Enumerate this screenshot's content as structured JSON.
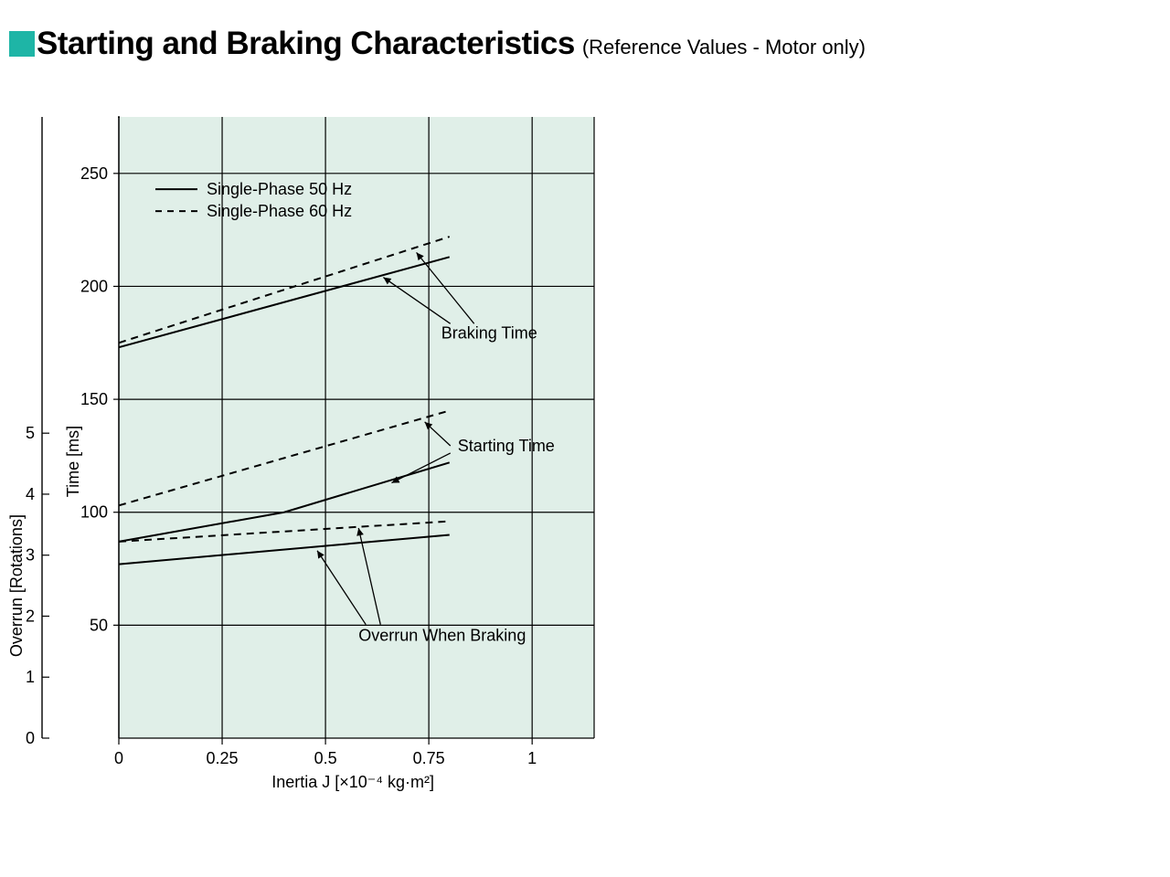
{
  "title": {
    "main": "Starting and Braking Characteristics",
    "sub": "(Reference Values - Motor only)",
    "marker_color": "#1eb5a6"
  },
  "chart": {
    "background_color": "#e0efe8",
    "grid_color": "#000000",
    "axis_color": "#000000",
    "text_color": "#000000",
    "font_family": "Arial",
    "axis_label_fontsize": 18,
    "tick_fontsize": 18,
    "annotation_fontsize": 18,
    "legend_fontsize": 18,
    "x": {
      "label": "Inertia J [×10⁻⁴ kg·m²]",
      "min": 0,
      "max": 1,
      "data_max_shaded": 1.15,
      "ticks": [
        0,
        0.25,
        0.5,
        0.75,
        1
      ],
      "grid_extra": [
        1.15
      ]
    },
    "y_time": {
      "label": "Time [ms]",
      "min": 0,
      "max": 275,
      "ticks": [
        50,
        100,
        150,
        200,
        250
      ]
    },
    "y_overrun": {
      "label": "Overrun [Rotations]",
      "ticks": [
        0,
        1,
        2,
        3,
        4,
        5
      ]
    },
    "legend": {
      "items": [
        {
          "label": "Single-Phase 50 Hz",
          "dash": "solid"
        },
        {
          "label": "Single-Phase 60 Hz",
          "dash": "dash"
        }
      ]
    },
    "annotations": {
      "braking_time": "Braking Time",
      "starting_time": "Starting Time",
      "overrun": "Overrun When Braking"
    },
    "series": {
      "braking_50": {
        "dash": "solid",
        "width": 2,
        "points": [
          [
            0,
            173
          ],
          [
            0.8,
            213
          ]
        ]
      },
      "braking_60": {
        "dash": "dash",
        "width": 2,
        "points": [
          [
            0,
            175
          ],
          [
            0.8,
            222
          ]
        ]
      },
      "starting_50": {
        "dash": "solid",
        "width": 2,
        "points": [
          [
            0,
            87
          ],
          [
            0.4,
            100
          ],
          [
            0.8,
            122
          ]
        ]
      },
      "starting_60": {
        "dash": "dash",
        "width": 2,
        "points": [
          [
            0,
            103
          ],
          [
            0.8,
            145
          ]
        ]
      },
      "overrun_50": {
        "dash": "solid",
        "width": 2,
        "points": [
          [
            0,
            77
          ],
          [
            0.8,
            90
          ]
        ]
      },
      "overrun_60": {
        "dash": "dash",
        "width": 2,
        "points": [
          [
            0,
            87
          ],
          [
            0.8,
            96
          ]
        ]
      }
    }
  }
}
